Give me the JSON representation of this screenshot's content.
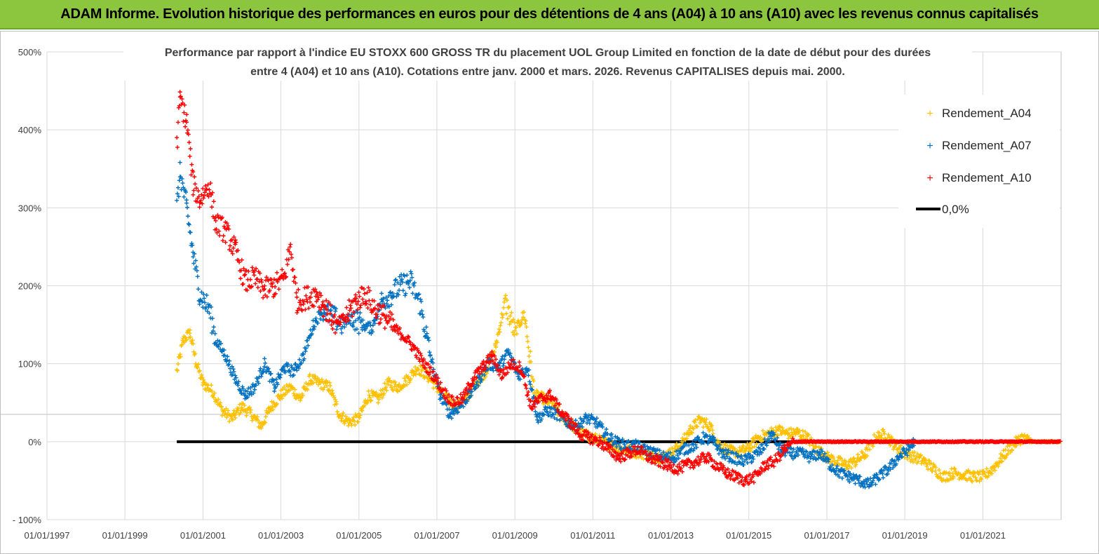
{
  "banner_title": "ADAM Informe. Evolution historique des performances en euros pour des détentions de 4 ans (A04) à 10 ans (A10) avec les revenus connus capitalisés",
  "colors": {
    "banner": "#8cc63f",
    "A04": "#ffc000",
    "A07": "#0070c0",
    "A10": "#ff0000",
    "zero": "#000000",
    "grid": "#d9d9d9"
  },
  "chart_data": {
    "type": "scatter",
    "title": [
      "Performance par rapport à l'indice EU STOXX 600 GROSS TR  du placement UOL Group Limited en fonction de la date de début pour des durées",
      "entre 4 (A04) et 10 ans (A10). Cotations entre janv. 2000 et mars. 2026. Revenus CAPITALISES depuis mai. 2000."
    ],
    "xlabel": "",
    "ylabel": "",
    "x_tick_labels": [
      "01/01/1997",
      "01/01/1999",
      "01/01/2001",
      "01/01/2003",
      "01/01/2005",
      "01/01/2007",
      "01/01/2009",
      "01/01/2011",
      "01/01/2013",
      "01/01/2015",
      "01/01/2017",
      "01/01/2019",
      "01/01/2021"
    ],
    "y_tick_labels": [
      "500%",
      "400%",
      "300%",
      "200%",
      "100%",
      "0%",
      "- 100%"
    ],
    "ylim": [
      -100,
      500
    ],
    "xlim": [
      "1997-01-01",
      "2022-12-31"
    ],
    "grid": true,
    "legend_position": "top-right",
    "legend": [
      "Rendement_A04",
      "Rendement_A07",
      "Rendement_A10",
      "0,0%"
    ],
    "series": [
      {
        "name": "Rendement_A04",
        "points": [
          [
            "2000-05-01",
            90
          ],
          [
            "2000-07-01",
            130
          ],
          [
            "2000-09-01",
            140
          ],
          [
            "2000-11-01",
            100
          ],
          [
            "2001-01-01",
            75
          ],
          [
            "2001-04-01",
            65
          ],
          [
            "2001-07-01",
            40
          ],
          [
            "2001-10-01",
            30
          ],
          [
            "2002-01-01",
            45
          ],
          [
            "2002-04-01",
            35
          ],
          [
            "2002-07-01",
            20
          ],
          [
            "2002-10-01",
            45
          ],
          [
            "2003-01-01",
            60
          ],
          [
            "2003-04-01",
            70
          ],
          [
            "2003-07-01",
            55
          ],
          [
            "2003-10-01",
            80
          ],
          [
            "2004-01-01",
            75
          ],
          [
            "2004-04-01",
            70
          ],
          [
            "2004-07-01",
            35
          ],
          [
            "2004-10-01",
            25
          ],
          [
            "2005-01-01",
            30
          ],
          [
            "2005-04-01",
            60
          ],
          [
            "2005-07-01",
            55
          ],
          [
            "2005-10-01",
            75
          ],
          [
            "2006-01-01",
            70
          ],
          [
            "2006-04-01",
            80
          ],
          [
            "2006-07-01",
            95
          ],
          [
            "2006-10-01",
            85
          ],
          [
            "2007-01-01",
            70
          ],
          [
            "2007-04-01",
            55
          ],
          [
            "2007-07-01",
            45
          ],
          [
            "2007-10-01",
            55
          ],
          [
            "2008-01-01",
            75
          ],
          [
            "2008-04-01",
            90
          ],
          [
            "2008-07-01",
            120
          ],
          [
            "2008-10-01",
            180
          ],
          [
            "2009-01-01",
            140
          ],
          [
            "2009-04-01",
            165
          ],
          [
            "2009-07-01",
            60
          ],
          [
            "2009-10-01",
            55
          ],
          [
            "2010-01-01",
            45
          ],
          [
            "2010-04-01",
            30
          ],
          [
            "2010-07-01",
            20
          ],
          [
            "2010-10-01",
            10
          ],
          [
            "2011-01-01",
            5
          ],
          [
            "2011-04-01",
            0
          ],
          [
            "2011-07-01",
            -5
          ],
          [
            "2011-10-01",
            -10
          ],
          [
            "2012-01-01",
            -12
          ],
          [
            "2012-04-01",
            -15
          ],
          [
            "2012-07-01",
            -18
          ],
          [
            "2012-10-01",
            -20
          ],
          [
            "2013-01-01",
            -15
          ],
          [
            "2013-04-01",
            -5
          ],
          [
            "2013-07-01",
            15
          ],
          [
            "2013-10-01",
            28
          ],
          [
            "2014-01-01",
            20
          ],
          [
            "2014-04-01",
            -5
          ],
          [
            "2014-07-01",
            -12
          ],
          [
            "2014-10-01",
            -14
          ],
          [
            "2015-01-01",
            -8
          ],
          [
            "2015-04-01",
            5
          ],
          [
            "2015-07-01",
            10
          ],
          [
            "2015-10-01",
            15
          ],
          [
            "2016-01-01",
            10
          ],
          [
            "2016-04-01",
            12
          ],
          [
            "2016-07-01",
            5
          ],
          [
            "2016-10-01",
            -10
          ],
          [
            "2017-01-01",
            -20
          ],
          [
            "2017-04-01",
            -25
          ],
          [
            "2017-07-01",
            -30
          ],
          [
            "2017-10-01",
            -25
          ],
          [
            "2018-01-01",
            -15
          ],
          [
            "2018-04-01",
            5
          ],
          [
            "2018-07-01",
            10
          ],
          [
            "2018-10-01",
            -5
          ],
          [
            "2019-01-01",
            -15
          ],
          [
            "2019-04-01",
            -20
          ],
          [
            "2019-07-01",
            -25
          ],
          [
            "2019-10-01",
            -35
          ],
          [
            "2020-01-01",
            -45
          ],
          [
            "2020-04-01",
            -40
          ],
          [
            "2020-07-01",
            -42
          ],
          [
            "2020-10-01",
            -45
          ],
          [
            "2021-01-01",
            -45
          ],
          [
            "2021-04-01",
            -35
          ],
          [
            "2021-07-01",
            -20
          ],
          [
            "2021-10-01",
            -5
          ],
          [
            "2022-01-01",
            5
          ],
          [
            "2022-04-01",
            0
          ],
          [
            "2022-12-31",
            0
          ]
        ]
      },
      {
        "name": "Rendement_A07",
        "points": [
          [
            "2000-05-01",
            300
          ],
          [
            "2000-06-01",
            345
          ],
          [
            "2000-08-01",
            300
          ],
          [
            "2000-10-01",
            240
          ],
          [
            "2000-12-01",
            190
          ],
          [
            "2001-03-01",
            170
          ],
          [
            "2001-05-01",
            130
          ],
          [
            "2001-08-01",
            110
          ],
          [
            "2001-11-01",
            80
          ],
          [
            "2002-02-01",
            60
          ],
          [
            "2002-05-01",
            70
          ],
          [
            "2002-08-01",
            100
          ],
          [
            "2002-11-01",
            70
          ],
          [
            "2003-02-01",
            95
          ],
          [
            "2003-05-01",
            90
          ],
          [
            "2003-08-01",
            110
          ],
          [
            "2003-11-01",
            150
          ],
          [
            "2004-02-01",
            170
          ],
          [
            "2004-05-01",
            160
          ],
          [
            "2004-08-01",
            150
          ],
          [
            "2004-11-01",
            160
          ],
          [
            "2005-02-01",
            150
          ],
          [
            "2005-05-01",
            145
          ],
          [
            "2005-08-01",
            180
          ],
          [
            "2005-11-01",
            190
          ],
          [
            "2006-02-01",
            200
          ],
          [
            "2006-05-01",
            205
          ],
          [
            "2006-08-01",
            175
          ],
          [
            "2006-11-01",
            110
          ],
          [
            "2007-02-01",
            60
          ],
          [
            "2007-05-01",
            35
          ],
          [
            "2007-08-01",
            45
          ],
          [
            "2007-11-01",
            60
          ],
          [
            "2008-02-01",
            80
          ],
          [
            "2008-05-01",
            100
          ],
          [
            "2008-08-01",
            95
          ],
          [
            "2008-11-01",
            115
          ],
          [
            "2009-02-01",
            85
          ],
          [
            "2009-05-01",
            95
          ],
          [
            "2009-08-01",
            30
          ],
          [
            "2009-11-01",
            40
          ],
          [
            "2010-02-01",
            35
          ],
          [
            "2010-05-01",
            25
          ],
          [
            "2010-08-01",
            20
          ],
          [
            "2010-11-01",
            30
          ],
          [
            "2011-02-01",
            25
          ],
          [
            "2011-05-01",
            10
          ],
          [
            "2011-08-01",
            0
          ],
          [
            "2011-11-01",
            -5
          ],
          [
            "2012-02-01",
            -5
          ],
          [
            "2012-05-01",
            -10
          ],
          [
            "2012-08-01",
            -15
          ],
          [
            "2012-11-01",
            -20
          ],
          [
            "2013-02-01",
            -20
          ],
          [
            "2013-05-01",
            -10
          ],
          [
            "2013-08-01",
            -5
          ],
          [
            "2013-11-01",
            5
          ],
          [
            "2014-02-01",
            0
          ],
          [
            "2014-05-01",
            -15
          ],
          [
            "2014-08-01",
            -20
          ],
          [
            "2014-11-01",
            -25
          ],
          [
            "2015-02-01",
            -20
          ],
          [
            "2015-05-01",
            -10
          ],
          [
            "2015-08-01",
            10
          ],
          [
            "2015-11-01",
            -10
          ],
          [
            "2016-02-01",
            -15
          ],
          [
            "2016-05-01",
            -15
          ],
          [
            "2016-08-01",
            -20
          ],
          [
            "2016-11-01",
            -15
          ],
          [
            "2017-02-01",
            -30
          ],
          [
            "2017-05-01",
            -40
          ],
          [
            "2017-08-01",
            -45
          ],
          [
            "2017-11-01",
            -50
          ],
          [
            "2018-02-01",
            -55
          ],
          [
            "2018-05-01",
            -45
          ],
          [
            "2018-08-01",
            -35
          ],
          [
            "2018-11-01",
            -20
          ],
          [
            "2019-02-01",
            -10
          ],
          [
            "2019-04-01",
            0
          ]
        ]
      },
      {
        "name": "Rendement_A10",
        "points": [
          [
            "2000-05-01",
            380
          ],
          [
            "2000-06-01",
            440
          ],
          [
            "2000-08-01",
            410
          ],
          [
            "2000-10-01",
            330
          ],
          [
            "2000-12-01",
            310
          ],
          [
            "2001-03-01",
            330
          ],
          [
            "2001-05-01",
            280
          ],
          [
            "2001-08-01",
            270
          ],
          [
            "2001-11-01",
            245
          ],
          [
            "2002-02-01",
            205
          ],
          [
            "2002-05-01",
            210
          ],
          [
            "2002-08-01",
            195
          ],
          [
            "2002-11-01",
            200
          ],
          [
            "2003-02-01",
            210
          ],
          [
            "2003-04-01",
            250
          ],
          [
            "2003-06-01",
            180
          ],
          [
            "2003-09-01",
            185
          ],
          [
            "2003-12-01",
            190
          ],
          [
            "2004-03-01",
            170
          ],
          [
            "2004-06-01",
            150
          ],
          [
            "2004-09-01",
            160
          ],
          [
            "2004-12-01",
            180
          ],
          [
            "2005-03-01",
            190
          ],
          [
            "2005-06-01",
            170
          ],
          [
            "2005-09-01",
            160
          ],
          [
            "2005-12-01",
            145
          ],
          [
            "2006-03-01",
            135
          ],
          [
            "2006-06-01",
            120
          ],
          [
            "2006-09-01",
            100
          ],
          [
            "2006-12-01",
            85
          ],
          [
            "2007-03-01",
            65
          ],
          [
            "2007-06-01",
            50
          ],
          [
            "2007-09-01",
            55
          ],
          [
            "2007-12-01",
            80
          ],
          [
            "2008-03-01",
            95
          ],
          [
            "2008-06-01",
            110
          ],
          [
            "2008-09-01",
            85
          ],
          [
            "2008-12-01",
            100
          ],
          [
            "2009-03-01",
            95
          ],
          [
            "2009-06-01",
            45
          ],
          [
            "2009-09-01",
            55
          ],
          [
            "2009-12-01",
            60
          ],
          [
            "2010-03-01",
            40
          ],
          [
            "2010-06-01",
            25
          ],
          [
            "2010-09-01",
            10
          ],
          [
            "2010-12-01",
            5
          ],
          [
            "2011-03-01",
            0
          ],
          [
            "2011-06-01",
            -10
          ],
          [
            "2011-09-01",
            -20
          ],
          [
            "2011-12-01",
            -15
          ],
          [
            "2012-03-01",
            -10
          ],
          [
            "2012-06-01",
            -20
          ],
          [
            "2012-09-01",
            -25
          ],
          [
            "2012-12-01",
            -30
          ],
          [
            "2013-03-01",
            -35
          ],
          [
            "2013-06-01",
            -30
          ],
          [
            "2013-09-01",
            -25
          ],
          [
            "2013-12-01",
            -20
          ],
          [
            "2014-03-01",
            -30
          ],
          [
            "2014-06-01",
            -40
          ],
          [
            "2014-09-01",
            -45
          ],
          [
            "2014-12-01",
            -50
          ],
          [
            "2015-03-01",
            -45
          ],
          [
            "2015-06-01",
            -30
          ],
          [
            "2015-09-01",
            -25
          ],
          [
            "2015-12-01",
            -10
          ],
          [
            "2016-03-01",
            0
          ],
          [
            "2016-06-01",
            0
          ],
          [
            "2022-12-31",
            0
          ]
        ]
      },
      {
        "name": "0,0%",
        "points": [
          [
            "2000-05-01",
            0
          ],
          [
            "2022-12-31",
            0
          ]
        ]
      }
    ]
  }
}
